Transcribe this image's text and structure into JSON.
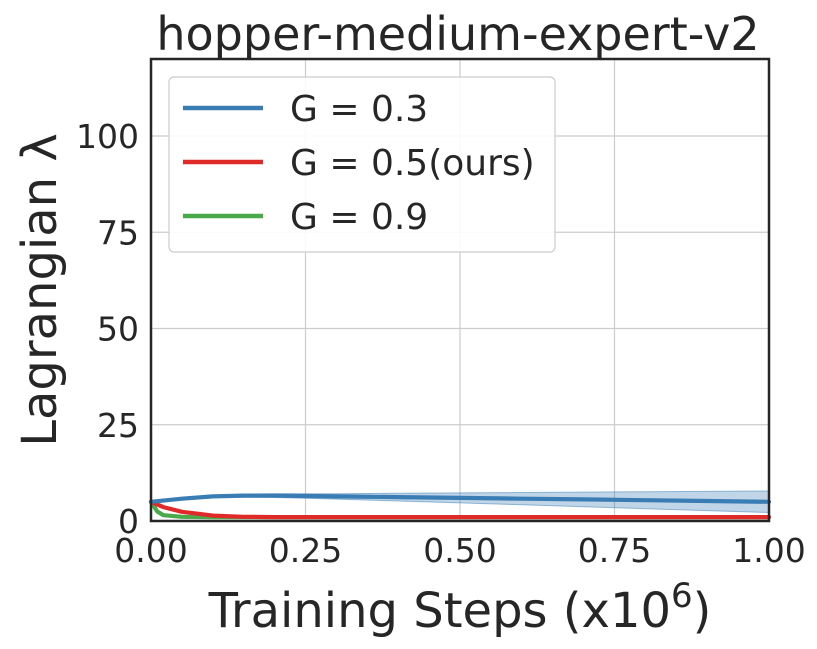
{
  "chart_data": {
    "type": "line",
    "title": "hopper-medium-expert-v2",
    "xlabel_main": "Training Steps (x10",
    "xlabel_sup": "6",
    "xlabel_close": ")",
    "ylabel": "Lagrangian λ",
    "xlim": [
      0,
      1.0
    ],
    "ylim": [
      0,
      120
    ],
    "xticks": [
      0.0,
      0.25,
      0.5,
      0.75,
      1.0
    ],
    "xtick_labels": [
      "0.00",
      "0.25",
      "0.50",
      "0.75",
      "1.00"
    ],
    "yticks": [
      0,
      25,
      50,
      75,
      100
    ],
    "ytick_labels": [
      "0",
      "25",
      "50",
      "75",
      "100"
    ],
    "grid": true,
    "legend_position": "top-left",
    "series": [
      {
        "name": "G = 0.3",
        "color": "#3a7db5",
        "x": [
          0.0,
          0.05,
          0.1,
          0.15,
          0.2,
          0.25,
          0.3,
          0.4,
          0.5,
          0.6,
          0.7,
          0.8,
          0.9,
          1.0
        ],
        "y": [
          5.0,
          5.8,
          6.4,
          6.6,
          6.6,
          6.5,
          6.4,
          6.2,
          6.0,
          5.8,
          5.6,
          5.4,
          5.2,
          5.0
        ],
        "y_lower": [
          5.0,
          5.6,
          6.1,
          6.2,
          6.1,
          5.9,
          5.7,
          5.2,
          4.7,
          4.2,
          3.7,
          3.2,
          2.7,
          2.2
        ],
        "y_upper": [
          5.0,
          6.0,
          6.7,
          7.0,
          7.1,
          7.1,
          7.1,
          7.2,
          7.3,
          7.4,
          7.5,
          7.6,
          7.7,
          7.8
        ]
      },
      {
        "name": "G = 0.5(ours)",
        "color": "#e02a2a",
        "x": [
          0.0,
          0.02,
          0.05,
          0.1,
          0.15,
          0.2,
          0.3,
          0.5,
          0.75,
          1.0
        ],
        "y": [
          5.0,
          3.6,
          2.4,
          1.4,
          1.1,
          1.0,
          1.0,
          1.0,
          1.0,
          1.0
        ]
      },
      {
        "name": "G = 0.9",
        "color": "#4aaa4a",
        "x": [
          0.0,
          0.01,
          0.02,
          0.05,
          0.1,
          0.2,
          0.5,
          0.75,
          1.0
        ],
        "y": [
          5.0,
          2.5,
          1.5,
          1.1,
          1.0,
          1.0,
          1.0,
          1.0,
          1.0
        ]
      }
    ]
  }
}
